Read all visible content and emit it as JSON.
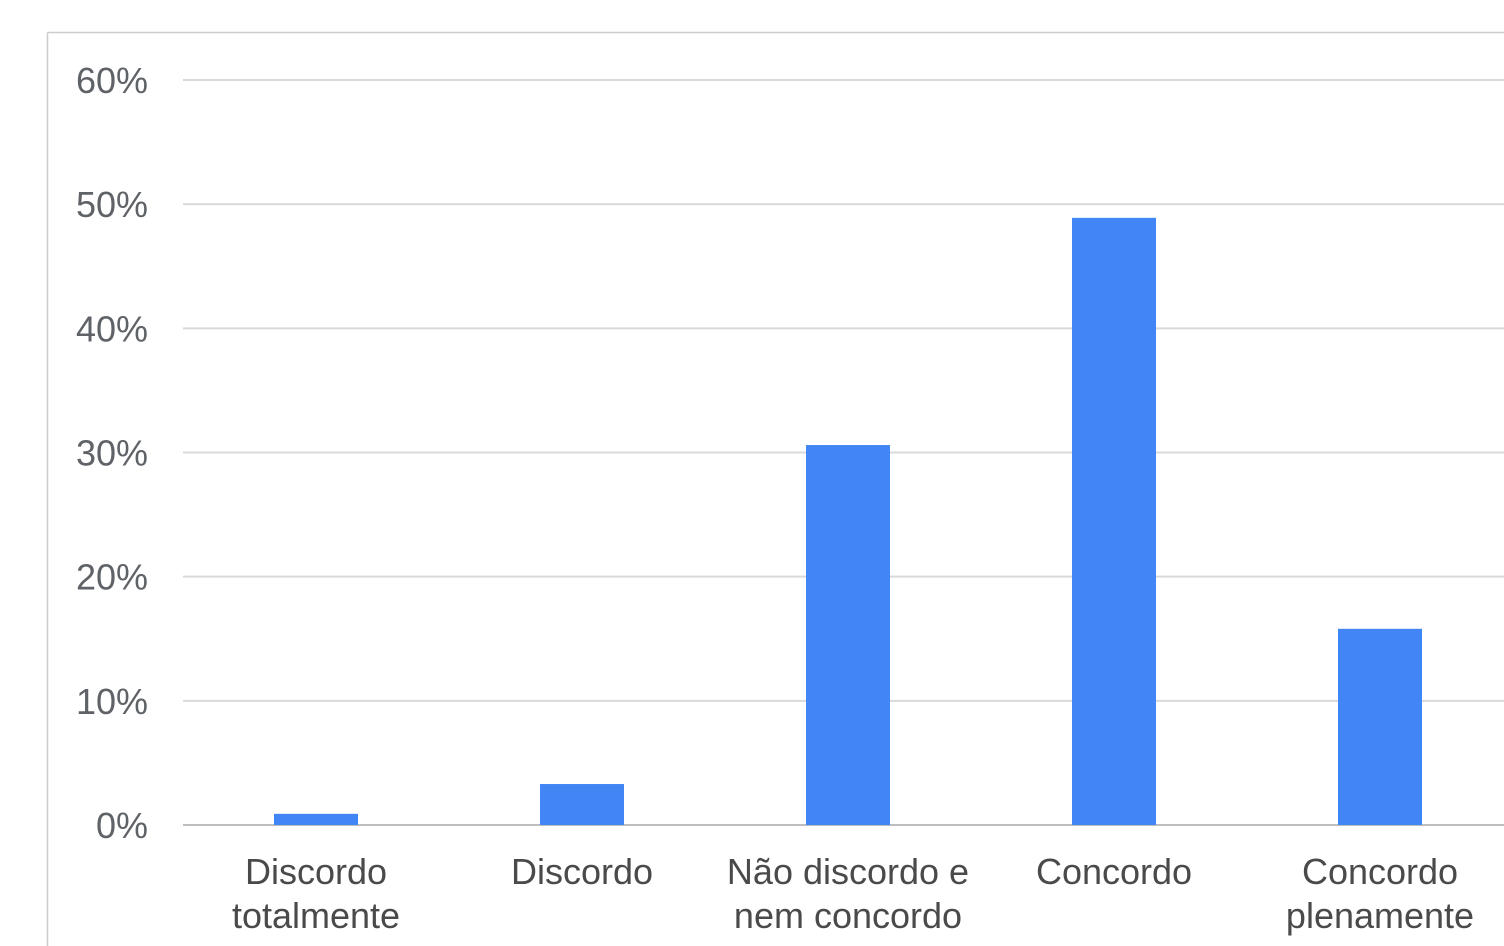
{
  "chart_data": {
    "type": "bar",
    "title": "",
    "xlabel": "",
    "ylabel": "",
    "categories": [
      [
        "Discordo",
        "totalmente"
      ],
      [
        "Discordo"
      ],
      [
        "Não discordo e",
        "nem concordo"
      ],
      [
        "Concordo"
      ],
      [
        "Concordo",
        "plenamente"
      ]
    ],
    "values": [
      0.9,
      3.3,
      30.6,
      48.9,
      15.8
    ],
    "ylim": [
      0,
      60
    ],
    "yticks": [
      {
        "value": 0,
        "label": "0%"
      },
      {
        "value": 10,
        "label": "10%"
      },
      {
        "value": 20,
        "label": "20%"
      },
      {
        "value": 30,
        "label": "30%"
      },
      {
        "value": 40,
        "label": "40%"
      },
      {
        "value": 50,
        "label": "50%"
      },
      {
        "value": 60,
        "label": "60%"
      }
    ],
    "grid": true,
    "legend": "none",
    "colors": {
      "bar": "#4285f4",
      "grid": "#d9d9d9",
      "frame": "#cccccc"
    }
  }
}
